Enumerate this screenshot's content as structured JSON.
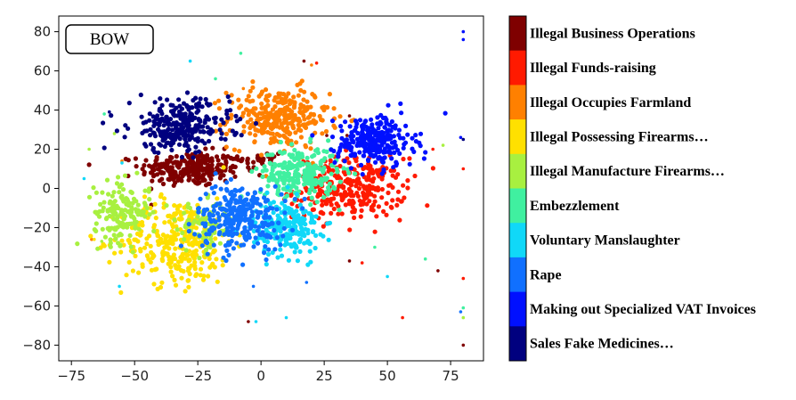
{
  "chart_data": {
    "type": "scatter",
    "panel_tag": "BOW",
    "xlim": [
      -80,
      88
    ],
    "ylim": [
      -88,
      88
    ],
    "x_ticks": [
      -75,
      -50,
      -25,
      0,
      25,
      50,
      75
    ],
    "y_ticks": [
      80,
      60,
      40,
      20,
      0,
      -20,
      -40,
      -60,
      -80
    ],
    "grid": false,
    "legend_position": "right (colorbar)",
    "series": [
      {
        "name": "Illegal Business Operations",
        "color": "#7f0000",
        "clusters": [
          {
            "cx": -28,
            "cy": 10,
            "rx": 18,
            "ry": 8,
            "n": 260
          },
          {
            "cx": 0,
            "cy": 15,
            "rx": 8,
            "ry": 5,
            "n": 30
          }
        ],
        "outliers": [
          [
            17,
            65
          ],
          [
            26,
            27
          ],
          [
            34,
            27
          ],
          [
            35,
            37
          ],
          [
            -5,
            -68
          ],
          [
            35,
            -37
          ],
          [
            80,
            -80
          ],
          [
            70,
            -42
          ]
        ]
      },
      {
        "name": "Illegal Funds-raising",
        "color": "#ff1a00",
        "clusters": [
          {
            "cx": 35,
            "cy": 0,
            "rx": 20,
            "ry": 14,
            "n": 300
          }
        ],
        "outliers": [
          [
            80,
            10
          ],
          [
            56,
            -66
          ],
          [
            80,
            -46
          ],
          [
            68,
            20
          ],
          [
            40,
            -38
          ],
          [
            22,
            64
          ]
        ]
      },
      {
        "name": "Illegal Occupies Farmland",
        "color": "#ff8000",
        "clusters": [
          {
            "cx": 7,
            "cy": 36,
            "rx": 18,
            "ry": 14,
            "n": 300
          }
        ],
        "outliers": [
          [
            -7,
            51
          ],
          [
            20,
            63
          ],
          [
            -55,
            14
          ],
          [
            -67,
            -26
          ]
        ]
      },
      {
        "name": "Illegal Possessing Firearms…",
        "color": "#ffe000",
        "clusters": [
          {
            "cx": -33,
            "cy": -27,
            "rx": 20,
            "ry": 20,
            "n": 320
          }
        ],
        "outliers": [
          [
            -66,
            -26
          ],
          [
            -51,
            -10
          ]
        ]
      },
      {
        "name": "Illegal Manufacture Firearms…",
        "color": "#a8f040",
        "clusters": [
          {
            "cx": -55,
            "cy": -12,
            "rx": 10,
            "ry": 14,
            "n": 160
          },
          {
            "cx": -22,
            "cy": -20,
            "rx": 10,
            "ry": 12,
            "n": 80
          }
        ],
        "outliers": [
          [
            -68,
            20
          ],
          [
            -58,
            28
          ],
          [
            -63,
            -27
          ],
          [
            72,
            22
          ],
          [
            80,
            -66
          ]
        ]
      },
      {
        "name": "Embezzlement",
        "color": "#40f0a0",
        "clusters": [
          {
            "cx": 15,
            "cy": 8,
            "rx": 14,
            "ry": 12,
            "n": 250
          }
        ],
        "outliers": [
          [
            -18,
            56
          ],
          [
            -62,
            38
          ],
          [
            45,
            -30
          ],
          [
            65,
            -36
          ],
          [
            80,
            -61
          ],
          [
            -8,
            69
          ]
        ]
      },
      {
        "name": "Voluntary Manslaughter",
        "color": "#10d8f8",
        "clusters": [
          {
            "cx": 10,
            "cy": -20,
            "rx": 12,
            "ry": 13,
            "n": 220
          }
        ],
        "outliers": [
          [
            -55,
            13
          ],
          [
            -70,
            5
          ],
          [
            -56,
            -50
          ],
          [
            10,
            -66
          ],
          [
            -2,
            -68
          ],
          [
            50,
            -45
          ],
          [
            -28,
            65
          ]
        ]
      },
      {
        "name": "Rape",
        "color": "#1070ff",
        "clusters": [
          {
            "cx": -8,
            "cy": -15,
            "rx": 16,
            "ry": 15,
            "n": 280
          }
        ],
        "outliers": [
          [
            -3,
            -50
          ],
          [
            18,
            -48
          ],
          [
            -33,
            37
          ],
          [
            79,
            -63
          ]
        ]
      },
      {
        "name": "Making out Specialized VAT Invoices",
        "color": "#0010ff",
        "clusters": [
          {
            "cx": 45,
            "cy": 24,
            "rx": 14,
            "ry": 12,
            "n": 260
          }
        ],
        "outliers": [
          [
            80,
            80
          ],
          [
            80,
            76
          ],
          [
            79,
            26
          ],
          [
            -60,
            39
          ]
        ]
      },
      {
        "name": "Sales Fake Medicines…",
        "color": "#00007f",
        "clusters": [
          {
            "cx": -32,
            "cy": 32,
            "rx": 18,
            "ry": 12,
            "n": 280
          }
        ],
        "outliers": [
          [
            80,
            25
          ],
          [
            -60,
            39
          ]
        ]
      }
    ]
  }
}
